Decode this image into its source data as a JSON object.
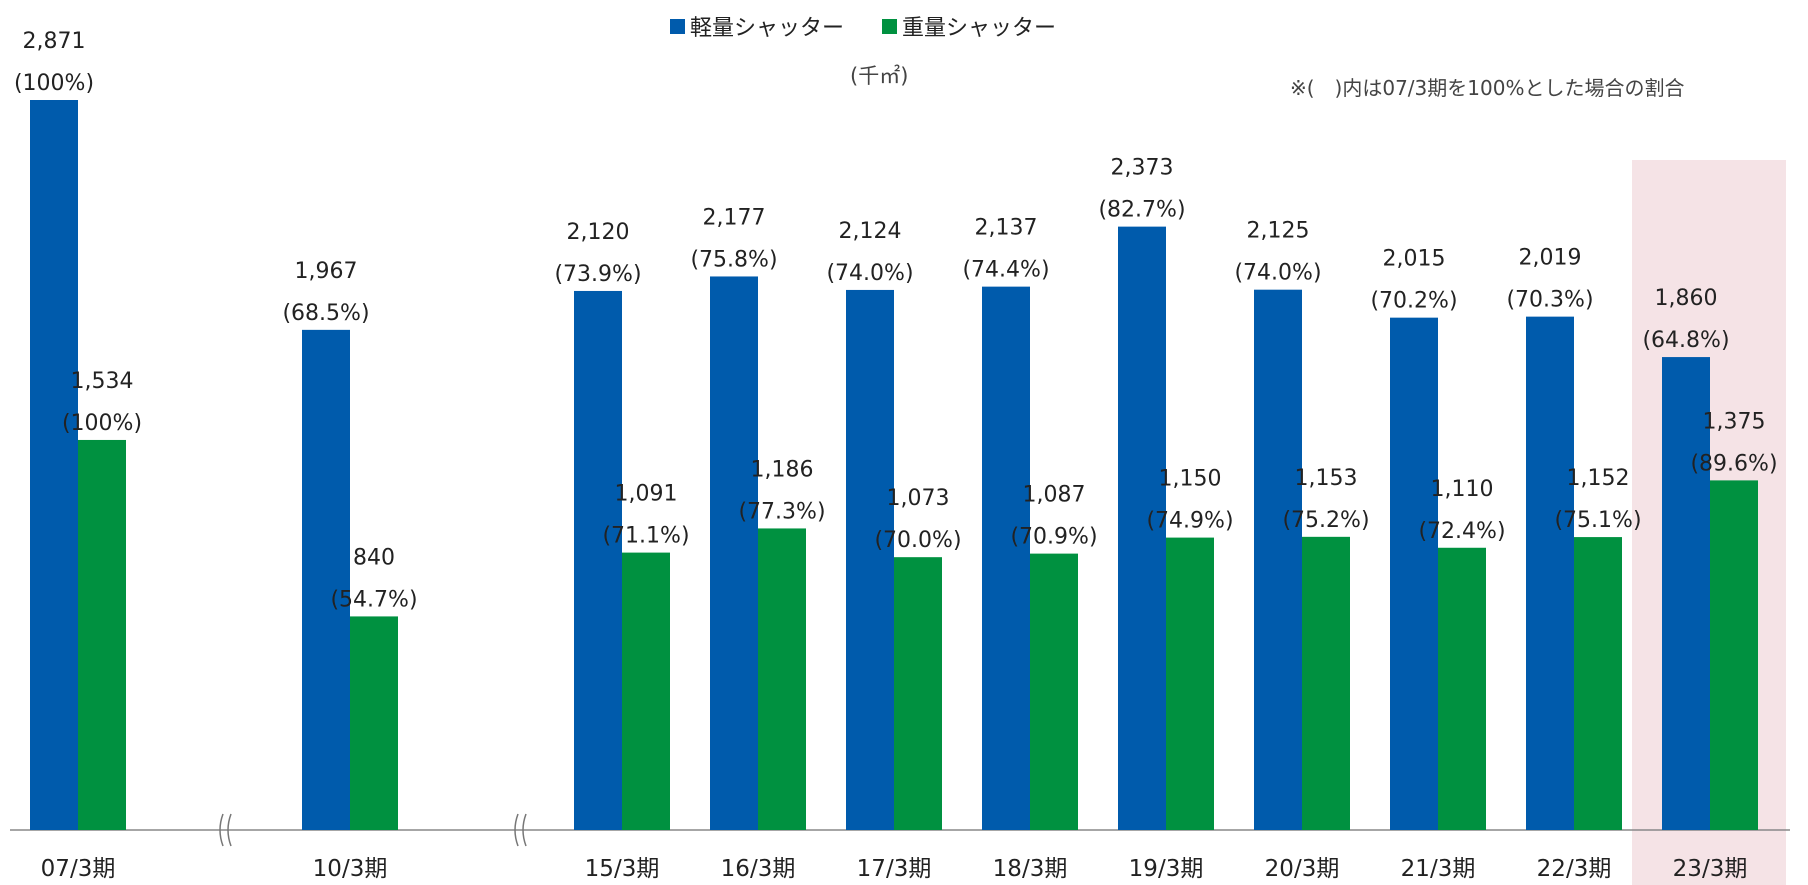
{
  "chart_data": {
    "type": "bar",
    "categories": [
      "07/3期",
      "10/3期",
      "15/3期",
      "16/3期",
      "17/3期",
      "18/3期",
      "19/3期",
      "20/3期",
      "21/3期",
      "22/3期",
      "23/3期"
    ],
    "series": [
      {
        "name": "軽量シャッター",
        "color": "#005bac",
        "values": [
          2871,
          1967,
          2120,
          2177,
          2124,
          2137,
          2373,
          2125,
          2015,
          2019,
          1860
        ],
        "value_labels": [
          "2,871",
          "1,967",
          "2,120",
          "2,177",
          "2,124",
          "2,137",
          "2,373",
          "2,125",
          "2,015",
          "2,019",
          "1,860"
        ],
        "pct_labels": [
          "(100%)",
          "(68.5%)",
          "(73.9%)",
          "(75.8%)",
          "(74.0%)",
          "(74.4%)",
          "(82.7%)",
          "(74.0%)",
          "(70.2%)",
          "(70.3%)",
          "(64.8%)"
        ]
      },
      {
        "name": "重量シャッター",
        "color": "#009140",
        "values": [
          1534,
          840,
          1091,
          1186,
          1073,
          1087,
          1150,
          1153,
          1110,
          1152,
          1375
        ],
        "value_labels": [
          "1,534",
          "840",
          "1,091",
          "1,186",
          "1,073",
          "1,087",
          "1,150",
          "1,153",
          "1,110",
          "1,152",
          "1,375"
        ],
        "pct_labels": [
          "(100%)",
          "(54.7%)",
          "(71.1%)",
          "(77.3%)",
          "(70.0%)",
          "(70.9%)",
          "(74.9%)",
          "(75.2%)",
          "(72.4%)",
          "(75.1%)",
          "(89.6%)"
        ]
      }
    ],
    "unit": "(千㎡)",
    "note": "※(　)内は07/3期を100%とした場合の割合",
    "highlight_category": "23/3期",
    "highlight_color": "#f5e3e6",
    "axis_break_marks": 2,
    "ylim": [
      0,
      2871
    ],
    "grid": false,
    "legend_position": "top-center"
  }
}
